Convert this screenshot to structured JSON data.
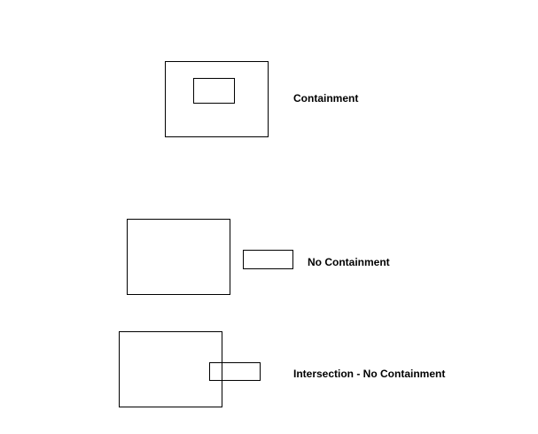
{
  "diagram": {
    "stroke_color": "#000000",
    "background_color": "#ffffff",
    "cases": [
      {
        "id": "containment",
        "label": "Containment",
        "relation": "inner rectangle fully inside outer rectangle"
      },
      {
        "id": "no-containment",
        "label": "No Containment",
        "relation": "small rectangle completely outside large rectangle"
      },
      {
        "id": "intersection",
        "label": "Intersection - No Containment",
        "relation": "small rectangle partially overlaps large rectangle"
      }
    ]
  }
}
